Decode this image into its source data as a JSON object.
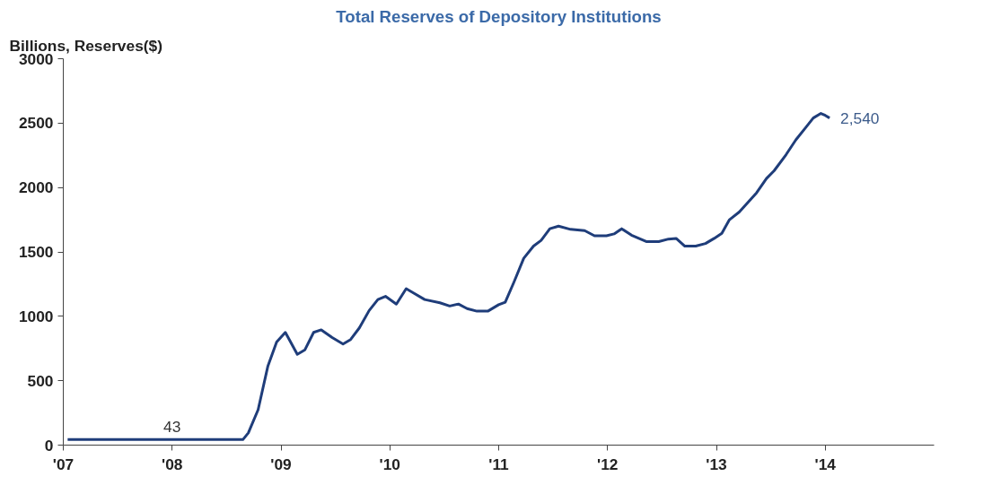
{
  "chart_data": {
    "type": "line",
    "title": "Total Reserves of Depository Institutions",
    "ylabel": "Billions, Reserves($)",
    "xlim": [
      2007,
      2015
    ],
    "ylim": [
      0,
      3000
    ],
    "xticks": [
      {
        "value": 2007,
        "label": "'07"
      },
      {
        "value": 2008,
        "label": "'08"
      },
      {
        "value": 2009,
        "label": "'09"
      },
      {
        "value": 2010,
        "label": "'10"
      },
      {
        "value": 2011,
        "label": "'11"
      },
      {
        "value": 2012,
        "label": "'12"
      },
      {
        "value": 2013,
        "label": "'13"
      },
      {
        "value": 2014,
        "label": "'14"
      }
    ],
    "yticks": [
      0,
      500,
      1000,
      1500,
      2000,
      2500,
      3000
    ],
    "grid": false,
    "marker": "none",
    "line_style": "solid",
    "annotations": [
      {
        "text": "43",
        "x": 2008.0,
        "y": 43
      },
      {
        "text": "2,540",
        "x": 2014.04,
        "y": 2540
      }
    ],
    "series": [
      {
        "color": "#1f3d7a",
        "x": [
          2007.04,
          2008.65,
          2008.7,
          2008.79,
          2008.88,
          2008.96,
          2009.04,
          2009.15,
          2009.22,
          2009.3,
          2009.37,
          2009.47,
          2009.57,
          2009.64,
          2009.72,
          2009.81,
          2009.89,
          2009.96,
          2010.06,
          2010.15,
          2010.22,
          2010.32,
          2010.46,
          2010.55,
          2010.63,
          2010.71,
          2010.8,
          2010.9,
          2011.0,
          2011.06,
          2011.14,
          2011.23,
          2011.32,
          2011.39,
          2011.47,
          2011.55,
          2011.66,
          2011.79,
          2011.88,
          2011.99,
          2012.06,
          2012.13,
          2012.22,
          2012.36,
          2012.47,
          2012.56,
          2012.63,
          2012.71,
          2012.81,
          2012.9,
          2012.98,
          2013.05,
          2013.12,
          2013.21,
          2013.29,
          2013.37,
          2013.46,
          2013.53,
          2013.64,
          2013.73,
          2013.82,
          2013.89,
          2013.96,
          2014.0,
          2014.04
        ],
        "values": [
          43,
          43,
          95,
          275,
          615,
          800,
          875,
          705,
          740,
          875,
          895,
          835,
          785,
          820,
          910,
          1045,
          1130,
          1155,
          1095,
          1215,
          1180,
          1130,
          1105,
          1080,
          1095,
          1060,
          1040,
          1040,
          1090,
          1110,
          1265,
          1450,
          1545,
          1590,
          1680,
          1700,
          1675,
          1665,
          1625,
          1625,
          1640,
          1680,
          1630,
          1580,
          1580,
          1600,
          1605,
          1545,
          1545,
          1565,
          1605,
          1645,
          1750,
          1810,
          1885,
          1960,
          2070,
          2130,
          2255,
          2370,
          2465,
          2540,
          2575,
          2560,
          2540
        ]
      }
    ]
  }
}
